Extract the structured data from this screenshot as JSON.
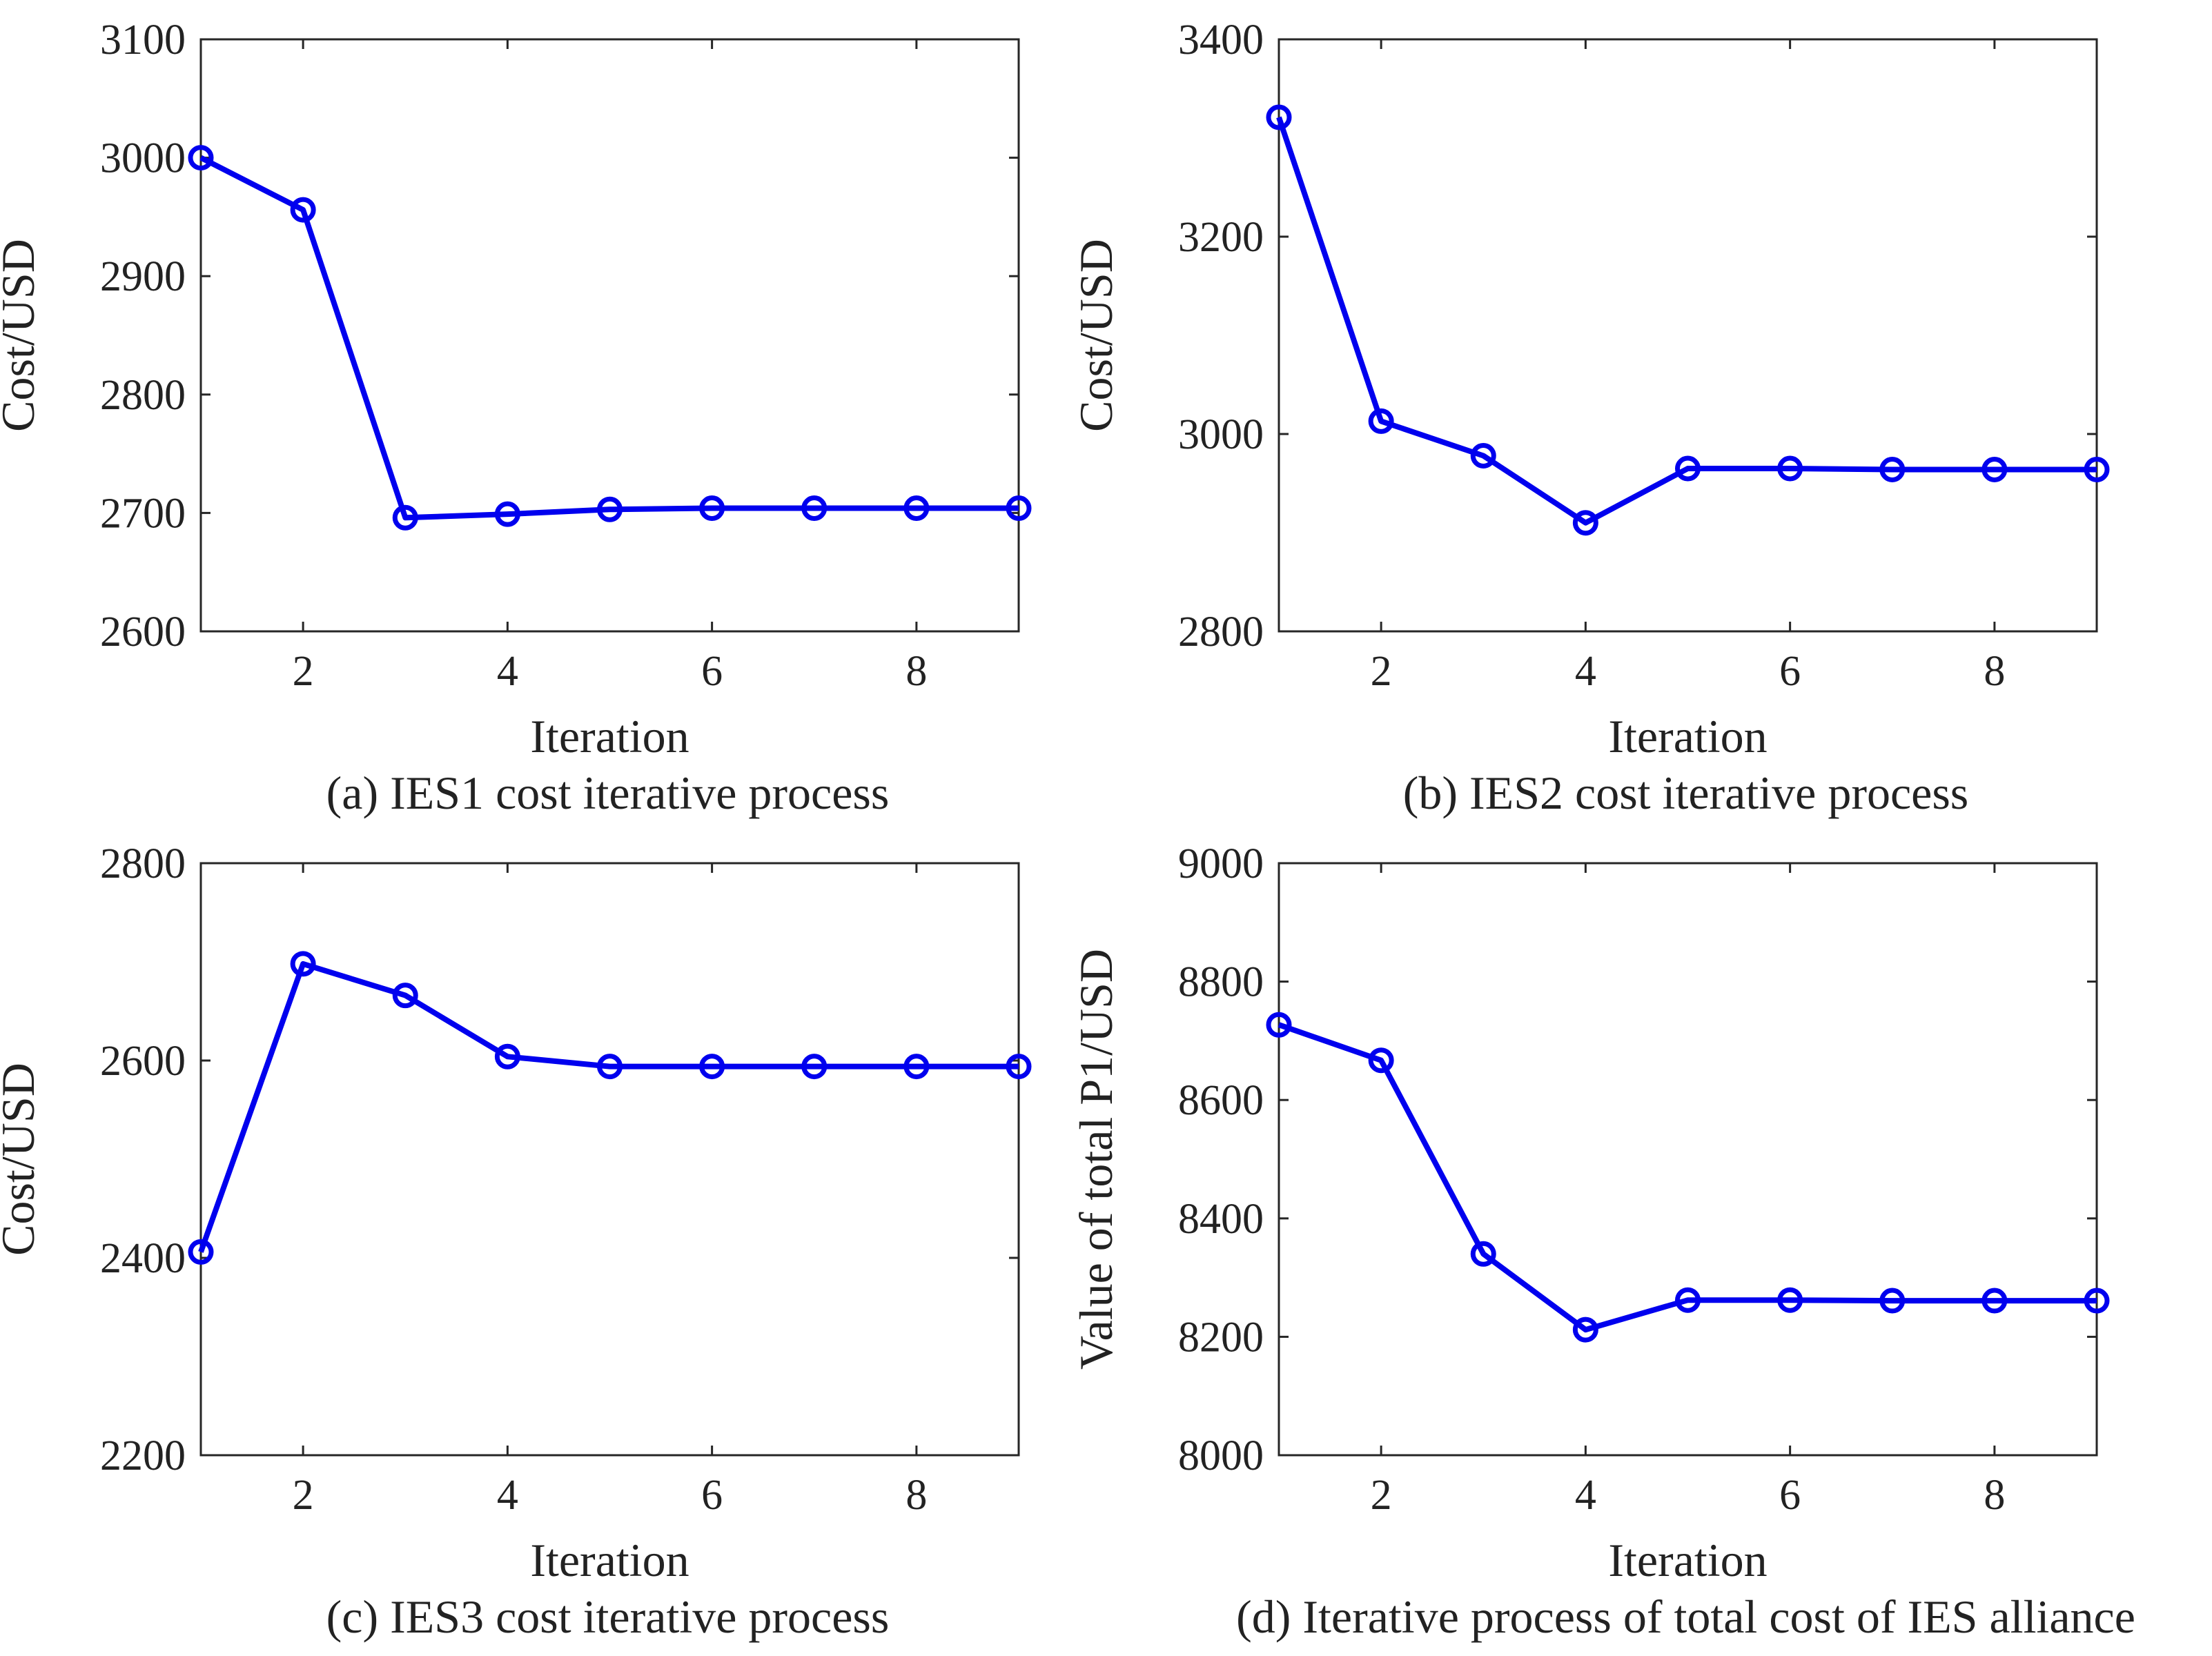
{
  "chart_data": [
    {
      "type": "line",
      "caption": "(a) IES1 cost iterative process",
      "xlabel": "Iteration",
      "ylabel": "Cost/USD",
      "xlim": [
        1,
        9
      ],
      "ylim": [
        2600,
        3100
      ],
      "xticks": [
        2,
        4,
        6,
        8
      ],
      "yticks": [
        2600,
        2700,
        2800,
        2900,
        3000,
        3100
      ],
      "series": [
        {
          "name": "IES1",
          "x": [
            1,
            2,
            3,
            4,
            5,
            6,
            7,
            8,
            9
          ],
          "values": [
            3000,
            2956,
            2696,
            2699,
            2703,
            2704,
            2704,
            2704,
            2704
          ]
        }
      ]
    },
    {
      "type": "line",
      "caption": "(b) IES2 cost iterative process",
      "xlabel": "Iteration",
      "ylabel": "Cost/USD",
      "xlim": [
        1,
        9
      ],
      "ylim": [
        2800,
        3400
      ],
      "xticks": [
        2,
        4,
        6,
        8
      ],
      "yticks": [
        2800,
        3000,
        3200,
        3400
      ],
      "series": [
        {
          "name": "IES2",
          "x": [
            1,
            2,
            3,
            4,
            5,
            6,
            7,
            8,
            9
          ],
          "values": [
            3321,
            3013,
            2978,
            2910,
            2965,
            2965,
            2964,
            2964,
            2964
          ]
        }
      ]
    },
    {
      "type": "line",
      "caption": "(c) IES3 cost iterative process",
      "xlabel": "Iteration",
      "ylabel": "Cost/USD",
      "xlim": [
        1,
        9
      ],
      "ylim": [
        2200,
        2800
      ],
      "xticks": [
        2,
        4,
        6,
        8
      ],
      "yticks": [
        2200,
        2400,
        2600,
        2800
      ],
      "series": [
        {
          "name": "IES3",
          "x": [
            1,
            2,
            3,
            4,
            5,
            6,
            7,
            8,
            9
          ],
          "values": [
            2406,
            2698,
            2666,
            2604,
            2594,
            2594,
            2594,
            2594,
            2594
          ]
        }
      ]
    },
    {
      "type": "line",
      "caption": "(d) Iterative process of total cost of IES alliance",
      "xlabel": "Iteration",
      "ylabel": "Value of total P1/USD",
      "xlim": [
        1,
        9
      ],
      "ylim": [
        8000,
        9000
      ],
      "xticks": [
        2,
        4,
        6,
        8
      ],
      "yticks": [
        8000,
        8200,
        8400,
        8600,
        8800,
        9000
      ],
      "series": [
        {
          "name": "Total",
          "x": [
            1,
            2,
            3,
            4,
            5,
            6,
            7,
            8,
            9
          ],
          "values": [
            8727,
            8667,
            8340,
            8212,
            8262,
            8262,
            8261,
            8261,
            8261
          ]
        }
      ]
    }
  ],
  "colors": {
    "series": "#0000ee",
    "axis": "#262626",
    "text": "#222222"
  }
}
